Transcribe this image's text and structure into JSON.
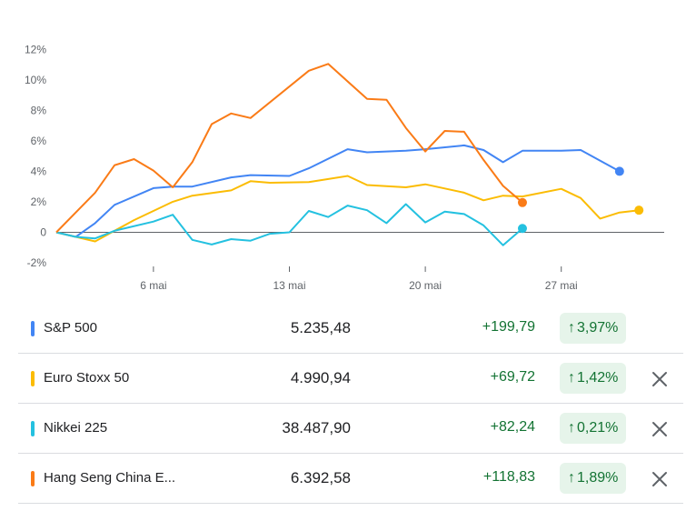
{
  "chart_data": {
    "type": "line",
    "x": [
      1,
      2,
      3,
      4,
      5,
      6,
      7,
      8,
      9,
      10,
      11,
      12,
      13,
      14,
      15,
      16,
      17,
      18,
      19,
      20,
      21,
      22,
      23,
      24,
      25,
      26,
      27,
      28,
      29,
      30,
      31
    ],
    "yticks": [
      "12%",
      "10%",
      "8%",
      "6%",
      "4%",
      "2%",
      "0",
      "-2%"
    ],
    "ytick_values": [
      12,
      10,
      8,
      6,
      4,
      2,
      0,
      -2
    ],
    "xticks": [
      {
        "x": 6,
        "label": "6 mai"
      },
      {
        "x": 13,
        "label": "13 mai"
      },
      {
        "x": 20,
        "label": "20 mai"
      },
      {
        "x": 27,
        "label": "27 mai"
      }
    ],
    "ylim": [
      -2.3,
      12.5
    ],
    "xlim": [
      1,
      32.3
    ],
    "zero_line": true,
    "series": [
      {
        "name": "S&P 500",
        "color": "#4285f4",
        "points": [
          [
            1,
            0
          ],
          [
            2,
            -0.3
          ],
          [
            3,
            0.6
          ],
          [
            4,
            1.8
          ],
          [
            6,
            2.9
          ],
          [
            7,
            3.0
          ],
          [
            8,
            3.0
          ],
          [
            10,
            3.6
          ],
          [
            11,
            3.75
          ],
          [
            13,
            3.7
          ],
          [
            14,
            4.2
          ],
          [
            16,
            5.45
          ],
          [
            17,
            5.25
          ],
          [
            19,
            5.35
          ],
          [
            20,
            5.45
          ],
          [
            22,
            5.7
          ],
          [
            23,
            5.4
          ],
          [
            24,
            4.6
          ],
          [
            25,
            5.35
          ],
          [
            27,
            5.35
          ],
          [
            28,
            5.4
          ],
          [
            30,
            4.0
          ]
        ]
      },
      {
        "name": "Euro Stoxx 50",
        "color": "#fbbc04",
        "points": [
          [
            1,
            0
          ],
          [
            2,
            -0.3
          ],
          [
            3,
            -0.6
          ],
          [
            4,
            0.1
          ],
          [
            5,
            0.8
          ],
          [
            7,
            2.0
          ],
          [
            8,
            2.4
          ],
          [
            10,
            2.75
          ],
          [
            11,
            3.35
          ],
          [
            12,
            3.25
          ],
          [
            14,
            3.3
          ],
          [
            16,
            3.7
          ],
          [
            17,
            3.1
          ],
          [
            19,
            2.95
          ],
          [
            20,
            3.15
          ],
          [
            22,
            2.6
          ],
          [
            23,
            2.1
          ],
          [
            24,
            2.4
          ],
          [
            25,
            2.35
          ],
          [
            27,
            2.85
          ],
          [
            28,
            2.25
          ],
          [
            29,
            0.9
          ],
          [
            30,
            1.3
          ],
          [
            31,
            1.45
          ]
        ]
      },
      {
        "name": "Nikkei 225",
        "color": "#24c1e0",
        "points": [
          [
            1,
            0
          ],
          [
            2,
            -0.3
          ],
          [
            3,
            -0.4
          ],
          [
            4,
            0.1
          ],
          [
            6,
            0.7
          ],
          [
            7,
            1.15
          ],
          [
            8,
            -0.5
          ],
          [
            9,
            -0.8
          ],
          [
            10,
            -0.45
          ],
          [
            11,
            -0.55
          ],
          [
            12,
            -0.1
          ],
          [
            13,
            0
          ],
          [
            14,
            1.4
          ],
          [
            15,
            1.0
          ],
          [
            16,
            1.75
          ],
          [
            17,
            1.45
          ],
          [
            18,
            0.6
          ],
          [
            19,
            1.85
          ],
          [
            20,
            0.65
          ],
          [
            21,
            1.35
          ],
          [
            22,
            1.2
          ],
          [
            23,
            0.45
          ],
          [
            24,
            -0.85
          ],
          [
            25,
            0.25
          ]
        ]
      },
      {
        "name": "Hang Seng China E...",
        "color": "#fa7b17",
        "points": [
          [
            1,
            0
          ],
          [
            3,
            2.6
          ],
          [
            4,
            4.4
          ],
          [
            5,
            4.8
          ],
          [
            6,
            4.05
          ],
          [
            7,
            2.95
          ],
          [
            8,
            4.6
          ],
          [
            9,
            7.1
          ],
          [
            10,
            7.8
          ],
          [
            11,
            7.5
          ],
          [
            14,
            10.6
          ],
          [
            15,
            11.05
          ],
          [
            17,
            8.75
          ],
          [
            18,
            8.7
          ],
          [
            19,
            6.85
          ],
          [
            20,
            5.3
          ],
          [
            21,
            6.65
          ],
          [
            22,
            6.6
          ],
          [
            23,
            4.75
          ],
          [
            24,
            3.05
          ],
          [
            25,
            1.95
          ]
        ]
      }
    ]
  },
  "rows": [
    {
      "name": "S&P 500",
      "color": "#4285f4",
      "price": "5.235,48",
      "change": "+199,79",
      "arrow": "↑",
      "percent": "3,97%",
      "removable": false
    },
    {
      "name": "Euro Stoxx 50",
      "color": "#fbbc04",
      "price": "4.990,94",
      "change": "+69,72",
      "arrow": "↑",
      "percent": "1,42%",
      "removable": true
    },
    {
      "name": "Nikkei 225",
      "color": "#24c1e0",
      "price": "38.487,90",
      "change": "+82,24",
      "arrow": "↑",
      "percent": "0,21%",
      "removable": true
    },
    {
      "name": "Hang Seng China E...",
      "color": "#fa7b17",
      "price": "6.392,58",
      "change": "+118,83",
      "arrow": "↑",
      "percent": "1,89%",
      "removable": true
    }
  ],
  "icons": {
    "remove": "close-icon",
    "trend": "arrow-up-icon"
  }
}
